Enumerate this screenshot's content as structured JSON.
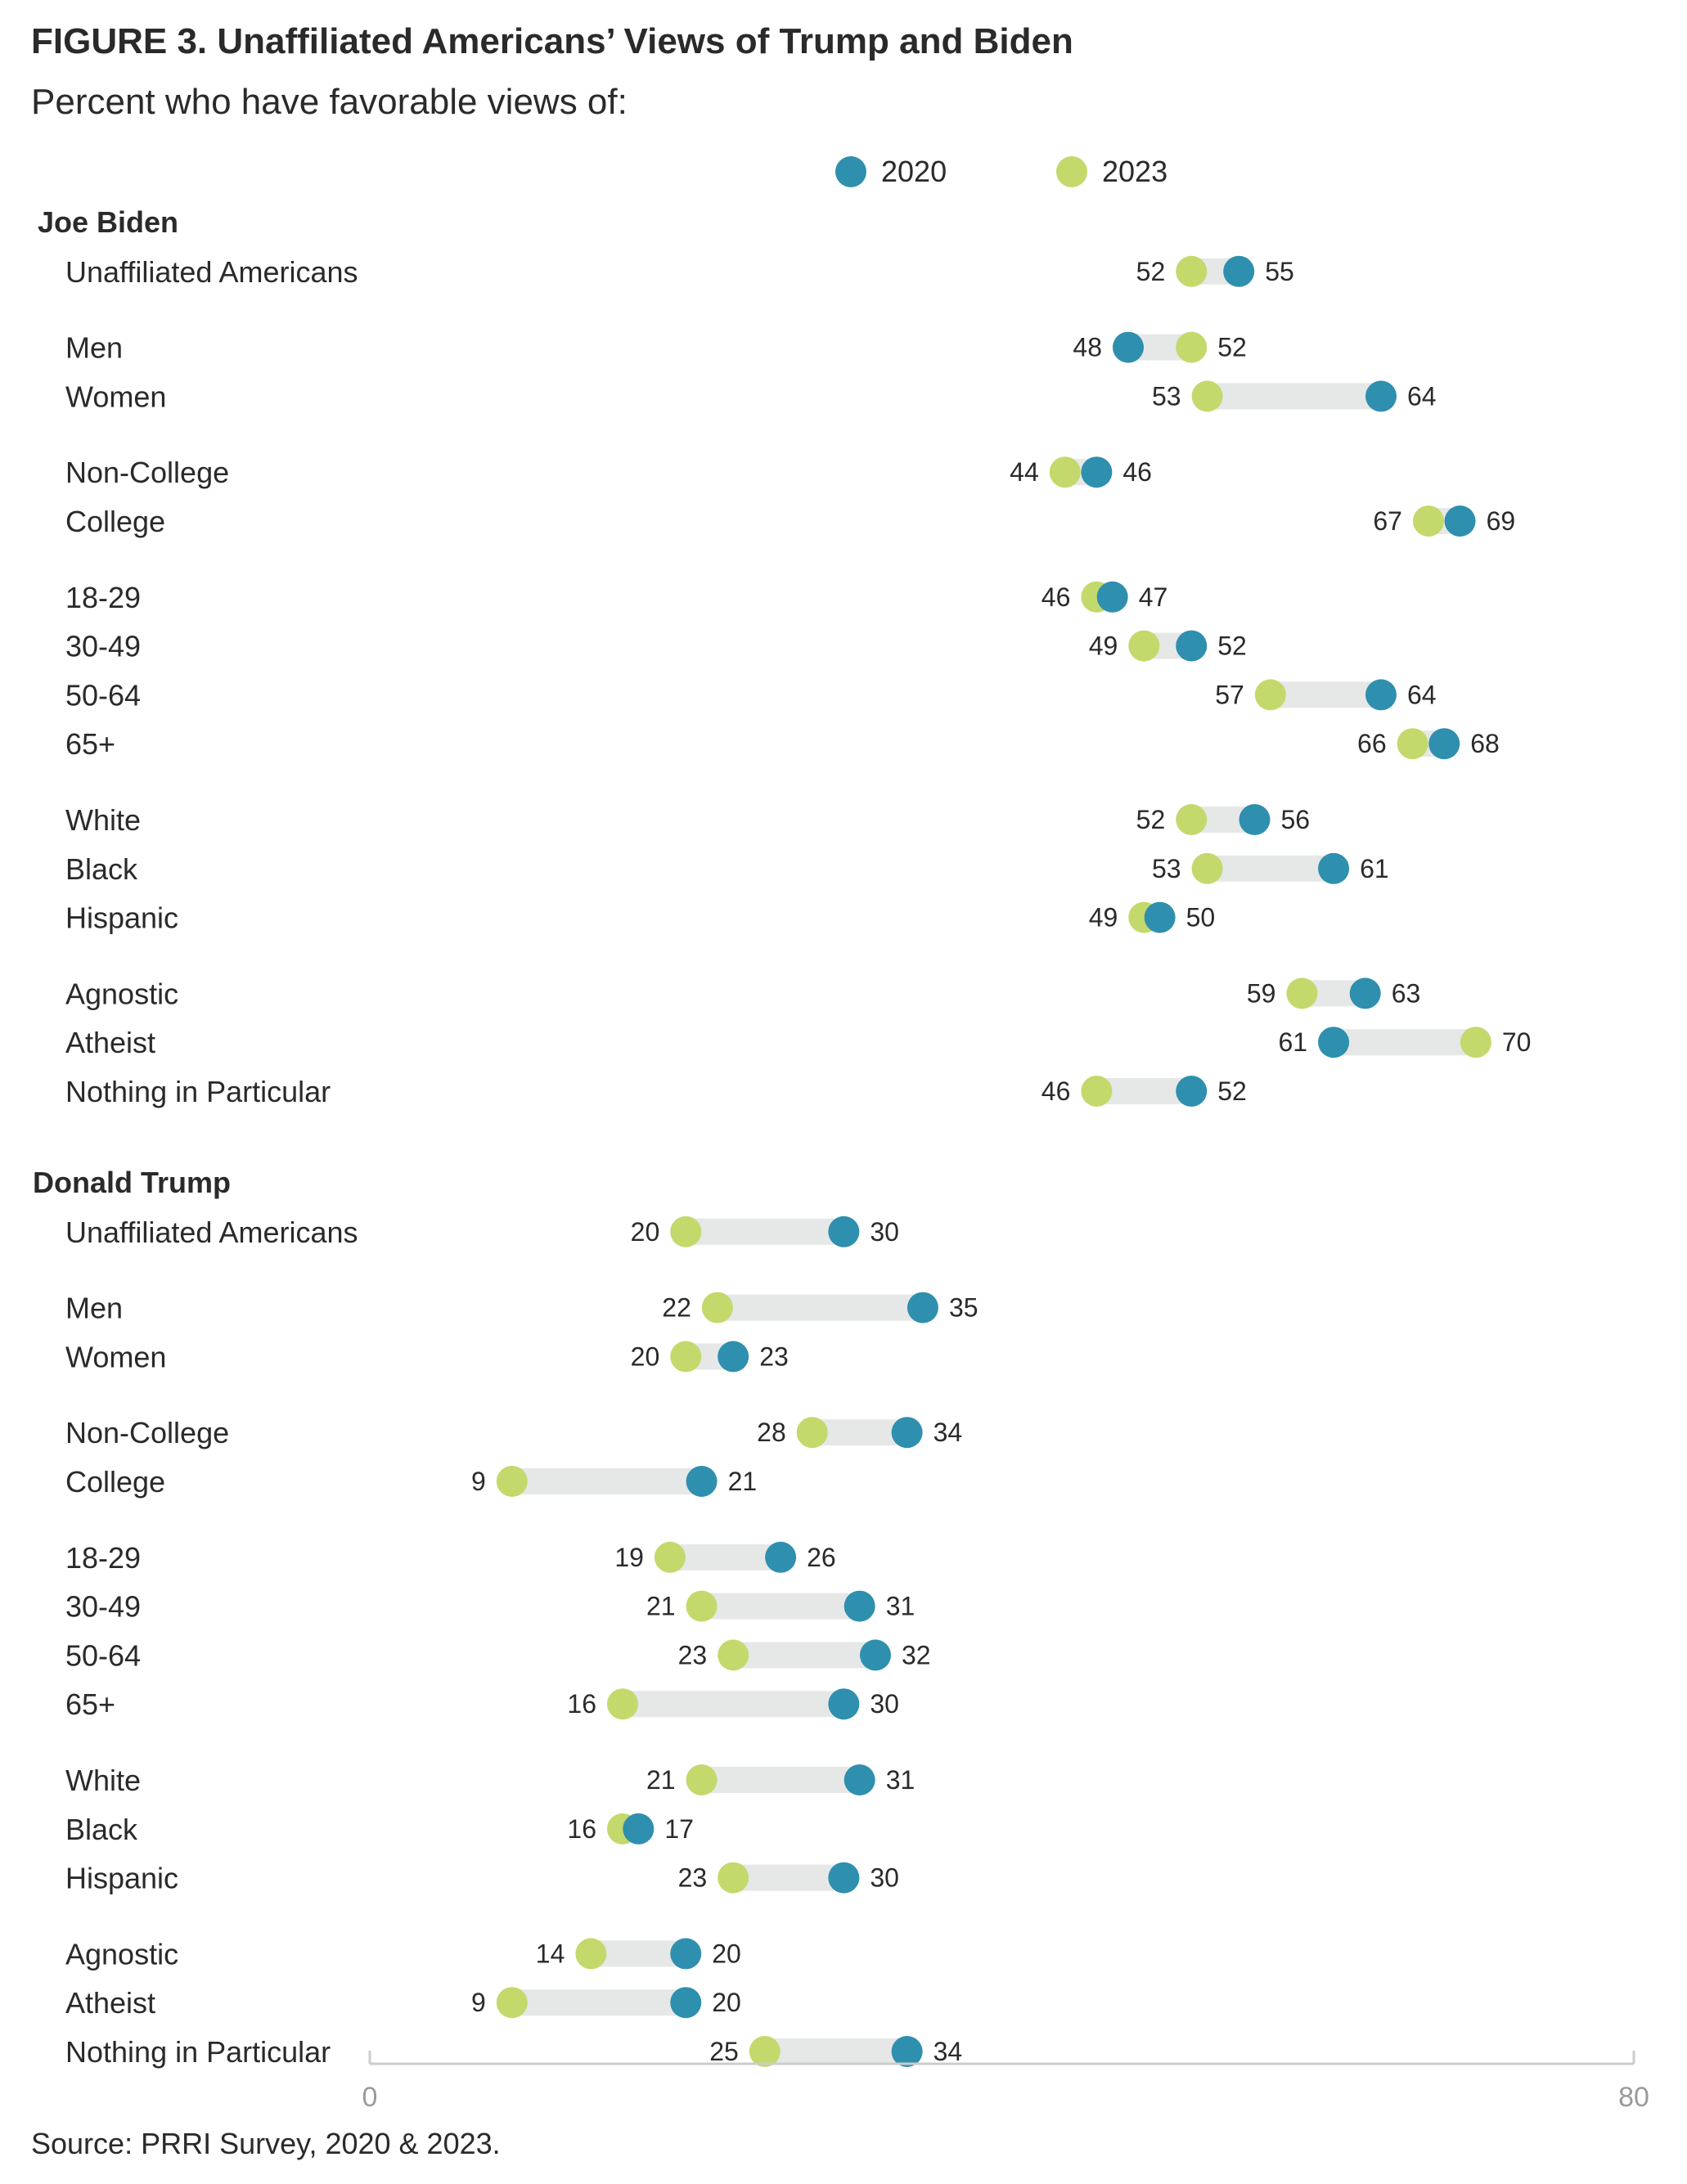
{
  "title": "FIGURE 3.  Unaffiliated Americans’ Views of Trump and Biden",
  "subtitle": "Percent who have favorable views of:",
  "source": "Source: PRRI Survey, 2020 & 2023.",
  "colors": {
    "y2020": "#2f8fae",
    "y2023": "#c3d96b",
    "bar": "#e6e7e7",
    "axis": "#cccccc"
  },
  "chart_data": {
    "type": "dumbbell",
    "title": "FIGURE 3.  Unaffiliated Americans’ Views of Trump and Biden",
    "subtitle": "Percent who have favorable views of:",
    "xlim": [
      0,
      80
    ],
    "xticks": [
      0,
      80
    ],
    "legend": {
      "placement": "top",
      "entries": [
        {
          "name": "2020",
          "color": "#2f8fae"
        },
        {
          "name": "2023",
          "color": "#c3d96b"
        }
      ]
    },
    "sections": [
      {
        "name": "Joe Biden",
        "groups": [
          [
            {
              "label": "Unaffiliated Americans",
              "v2020": 55,
              "v2023": 52
            }
          ],
          [
            {
              "label": "Men",
              "v2020": 48,
              "v2023": 52
            },
            {
              "label": "Women",
              "v2020": 64,
              "v2023": 53
            }
          ],
          [
            {
              "label": "Non-College",
              "v2020": 46,
              "v2023": 44
            },
            {
              "label": "College",
              "v2020": 69,
              "v2023": 67
            }
          ],
          [
            {
              "label": "18-29",
              "v2020": 47,
              "v2023": 46
            },
            {
              "label": "30-49",
              "v2020": 52,
              "v2023": 49
            },
            {
              "label": "50-64",
              "v2020": 64,
              "v2023": 57
            },
            {
              "label": "65+",
              "v2020": 68,
              "v2023": 66
            }
          ],
          [
            {
              "label": "White",
              "v2020": 56,
              "v2023": 52
            },
            {
              "label": "Black",
              "v2020": 61,
              "v2023": 53
            },
            {
              "label": "Hispanic",
              "v2020": 50,
              "v2023": 49
            }
          ],
          [
            {
              "label": "Agnostic",
              "v2020": 63,
              "v2023": 59
            },
            {
              "label": "Atheist",
              "v2020": 61,
              "v2023": 70
            },
            {
              "label": "Nothing in Particular",
              "v2020": 52,
              "v2023": 46
            }
          ]
        ]
      },
      {
        "name": "Donald Trump",
        "groups": [
          [
            {
              "label": "Unaffiliated Americans",
              "v2020": 30,
              "v2023": 20
            }
          ],
          [
            {
              "label": "Men",
              "v2020": 35,
              "v2023": 22
            },
            {
              "label": "Women",
              "v2020": 23,
              "v2023": 20
            }
          ],
          [
            {
              "label": "Non-College",
              "v2020": 34,
              "v2023": 28
            },
            {
              "label": "College",
              "v2020": 21,
              "v2023": 9
            }
          ],
          [
            {
              "label": "18-29",
              "v2020": 26,
              "v2023": 19
            },
            {
              "label": "30-49",
              "v2020": 31,
              "v2023": 21
            },
            {
              "label": "50-64",
              "v2020": 32,
              "v2023": 23
            },
            {
              "label": "65+",
              "v2020": 30,
              "v2023": 16
            }
          ],
          [
            {
              "label": "White",
              "v2020": 31,
              "v2023": 21
            },
            {
              "label": "Black",
              "v2020": 17,
              "v2023": 16
            },
            {
              "label": "Hispanic",
              "v2020": 30,
              "v2023": 23
            }
          ],
          [
            {
              "label": "Agnostic",
              "v2020": 20,
              "v2023": 14
            },
            {
              "label": "Atheist",
              "v2020": 20,
              "v2023": 9
            },
            {
              "label": "Nothing in Particular",
              "v2020": 34,
              "v2023": 25
            }
          ]
        ]
      }
    ]
  }
}
